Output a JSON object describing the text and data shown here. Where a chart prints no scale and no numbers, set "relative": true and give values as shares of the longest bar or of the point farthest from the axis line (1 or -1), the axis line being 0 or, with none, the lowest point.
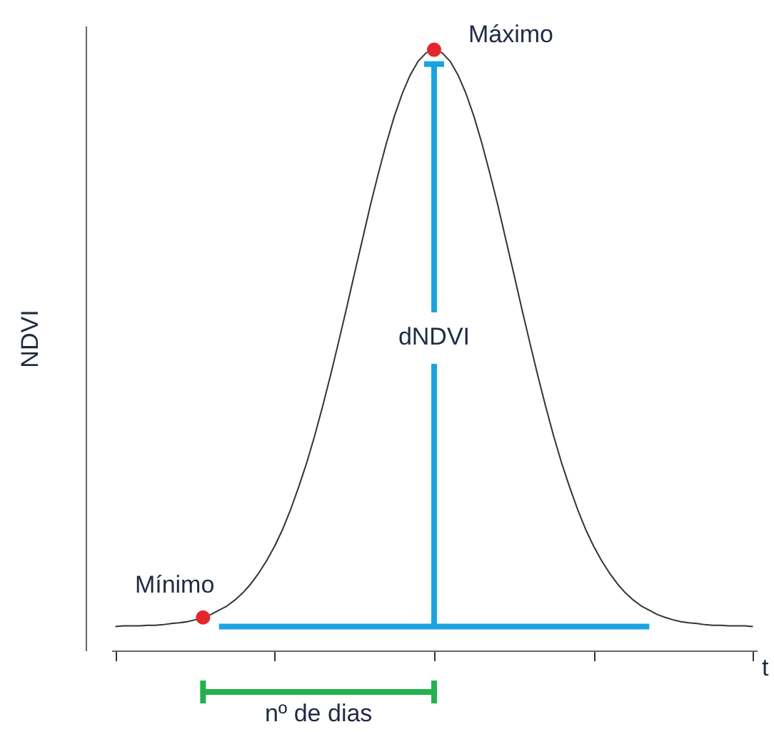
{
  "chart_data": {
    "type": "line",
    "relative": true,
    "ylabel": "NDVI",
    "xlabel": "t",
    "grid": false,
    "categories": [
      null,
      null,
      null,
      null,
      null,
      null,
      null,
      null,
      null,
      null,
      null,
      null,
      null,
      null,
      null,
      null,
      null,
      null,
      null,
      null,
      null,
      null,
      null,
      null,
      null,
      null,
      null,
      null,
      null,
      null,
      null,
      null,
      null,
      null,
      null,
      null,
      null,
      null,
      null,
      null,
      null,
      null,
      null,
      null,
      null,
      null,
      null,
      null,
      null,
      null,
      null,
      null,
      null,
      null,
      null,
      null,
      null,
      null,
      null,
      null,
      null,
      null,
      null,
      null,
      null,
      null,
      null,
      null,
      null,
      null,
      null,
      null,
      null,
      null,
      null,
      null,
      null,
      null,
      null,
      null,
      null
    ],
    "series": [
      {
        "color": "#333333",
        "values": [
          0.04,
          0.041,
          0.041,
          0.041,
          0.042,
          0.042,
          0.043,
          0.045,
          0.046,
          0.048,
          0.051,
          0.055,
          0.06,
          0.067,
          0.074,
          0.084,
          0.096,
          0.111,
          0.129,
          0.15,
          0.174,
          0.202,
          0.235,
          0.272,
          0.312,
          0.357,
          0.406,
          0.458,
          0.513,
          0.569,
          0.627,
          0.684,
          0.741,
          0.794,
          0.844,
          0.889,
          0.927,
          0.958,
          0.981,
          0.995,
          1.0,
          0.995,
          0.981,
          0.958,
          0.927,
          0.889,
          0.844,
          0.794,
          0.741,
          0.684,
          0.627,
          0.569,
          0.513,
          0.458,
          0.406,
          0.357,
          0.312,
          0.272,
          0.235,
          0.202,
          0.174,
          0.15,
          0.129,
          0.111,
          0.096,
          0.084,
          0.074,
          0.067,
          0.06,
          0.055,
          0.051,
          0.048,
          0.046,
          0.045,
          0.043,
          0.042,
          0.042,
          0.041,
          0.041,
          0.041,
          0.04
        ]
      }
    ],
    "annotations": [
      "Máximo",
      {
        "text": "Mínimo",
        "y": 0.055
      },
      "dNDVI",
      "nº de dias"
    ]
  }
}
